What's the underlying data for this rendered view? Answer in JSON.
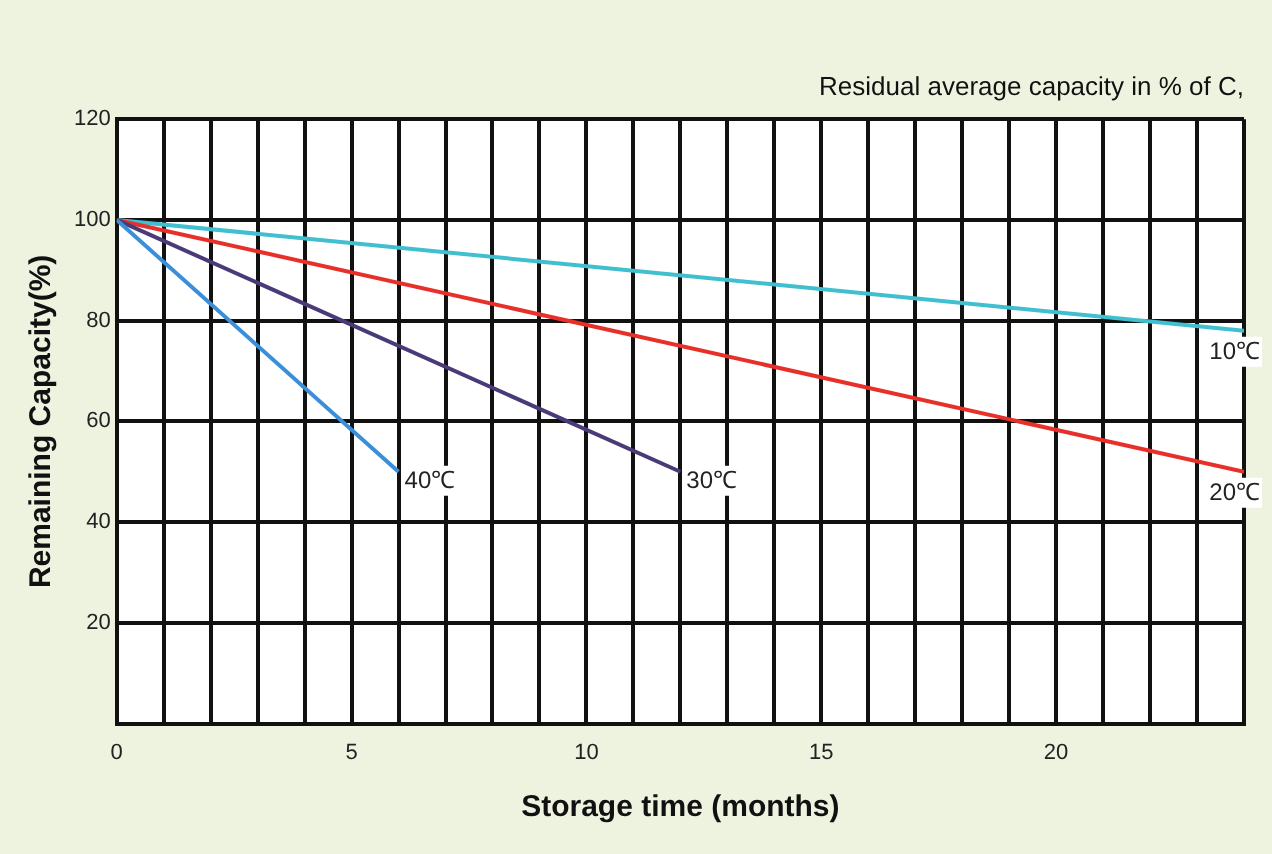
{
  "chart_data": {
    "type": "line",
    "title": "Residual average capacity in % of C,",
    "xlabel": "Storage time (months)",
    "ylabel": "Remaining Capacity(%)",
    "series": [
      {
        "name": "40℃",
        "color": "#3a8fd8",
        "x": [
          0,
          6
        ],
        "values": [
          100,
          50
        ]
      },
      {
        "name": "30℃",
        "color": "#4a3a78",
        "x": [
          0,
          12
        ],
        "values": [
          100,
          50
        ]
      },
      {
        "name": "20℃",
        "color": "#e8302a",
        "x": [
          0,
          24
        ],
        "values": [
          100,
          50
        ]
      },
      {
        "name": "10℃",
        "color": "#3fbfcf",
        "x": [
          0,
          24
        ],
        "values": [
          100,
          78
        ]
      }
    ],
    "xlim": [
      0,
      24
    ],
    "xticks": [
      0,
      {
        "value": 1,
        "label": null
      },
      {
        "value": 2,
        "label": null
      },
      {
        "value": 3,
        "label": null
      },
      {
        "value": 4,
        "label": null
      },
      5,
      {
        "value": 6,
        "label": null
      },
      {
        "value": 7,
        "label": null
      },
      {
        "value": 8,
        "label": null
      },
      {
        "value": 9,
        "label": null
      },
      10,
      {
        "value": 11,
        "label": null
      },
      {
        "value": 12,
        "label": null
      },
      {
        "value": 13,
        "label": null
      },
      {
        "value": 14,
        "label": null
      },
      15,
      {
        "value": 16,
        "label": null
      },
      {
        "value": 17,
        "label": null
      },
      {
        "value": 18,
        "label": null
      },
      {
        "value": 19,
        "label": null
      },
      20,
      {
        "value": 21,
        "label": null
      },
      {
        "value": 22,
        "label": null
      },
      {
        "value": 23,
        "label": null
      },
      {
        "value": 24,
        "label": null
      }
    ],
    "ylim": [
      0,
      120
    ],
    "yticks": [
      {
        "value": 0,
        "label": null
      },
      20,
      40,
      60,
      80,
      100,
      120
    ],
    "grid": true,
    "legend": false,
    "marker": "none",
    "line_style": "solid"
  }
}
